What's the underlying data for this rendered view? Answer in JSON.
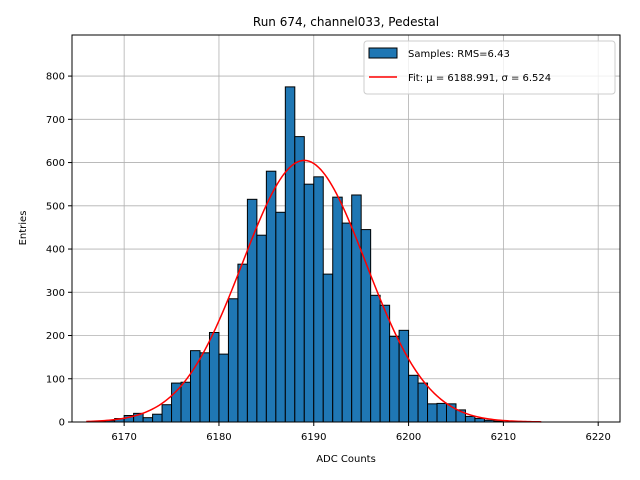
{
  "chart_data": {
    "type": "bar",
    "title": "Run 674, channel033, Pedestal",
    "xlabel": "ADC Counts",
    "ylabel": "Entries",
    "xlim": [
      6164.5,
      6222.3
    ],
    "ylim": [
      0,
      895
    ],
    "grid": true,
    "legend_position": "top-right",
    "x_ticks": [
      6170,
      6180,
      6190,
      6200,
      6210,
      6220
    ],
    "y_ticks": [
      0,
      100,
      200,
      300,
      400,
      500,
      600,
      700,
      800
    ],
    "histogram": {
      "name": "Samples: RMS=6.43",
      "color": "#1f77b4",
      "edgecolor": "#000000",
      "bin_width": 1,
      "bin_starts": [
        6167,
        6168,
        6169,
        6170,
        6171,
        6172,
        6173,
        6174,
        6175,
        6176,
        6177,
        6178,
        6179,
        6180,
        6181,
        6182,
        6183,
        6184,
        6185,
        6186,
        6187,
        6188,
        6189,
        6190,
        6191,
        6192,
        6193,
        6194,
        6195,
        6196,
        6197,
        6198,
        6199,
        6200,
        6201,
        6202,
        6203,
        6204,
        6205,
        6206,
        6207,
        6208,
        6209
      ],
      "values": [
        2,
        3,
        8,
        15,
        20,
        10,
        18,
        40,
        90,
        92,
        165,
        160,
        207,
        157,
        285,
        365,
        515,
        432,
        580,
        485,
        775,
        660,
        550,
        567,
        342,
        520,
        460,
        525,
        445,
        293,
        270,
        198,
        212,
        108,
        90,
        42,
        43,
        42,
        28,
        13,
        8,
        4,
        2
      ]
    },
    "fit": {
      "name": "Fit: μ = 6188.991, σ = 6.524",
      "color": "#ff0000",
      "mu": 6188.991,
      "sigma": 6.524,
      "peak": 605,
      "x_range": [
        6166,
        6214
      ]
    }
  }
}
